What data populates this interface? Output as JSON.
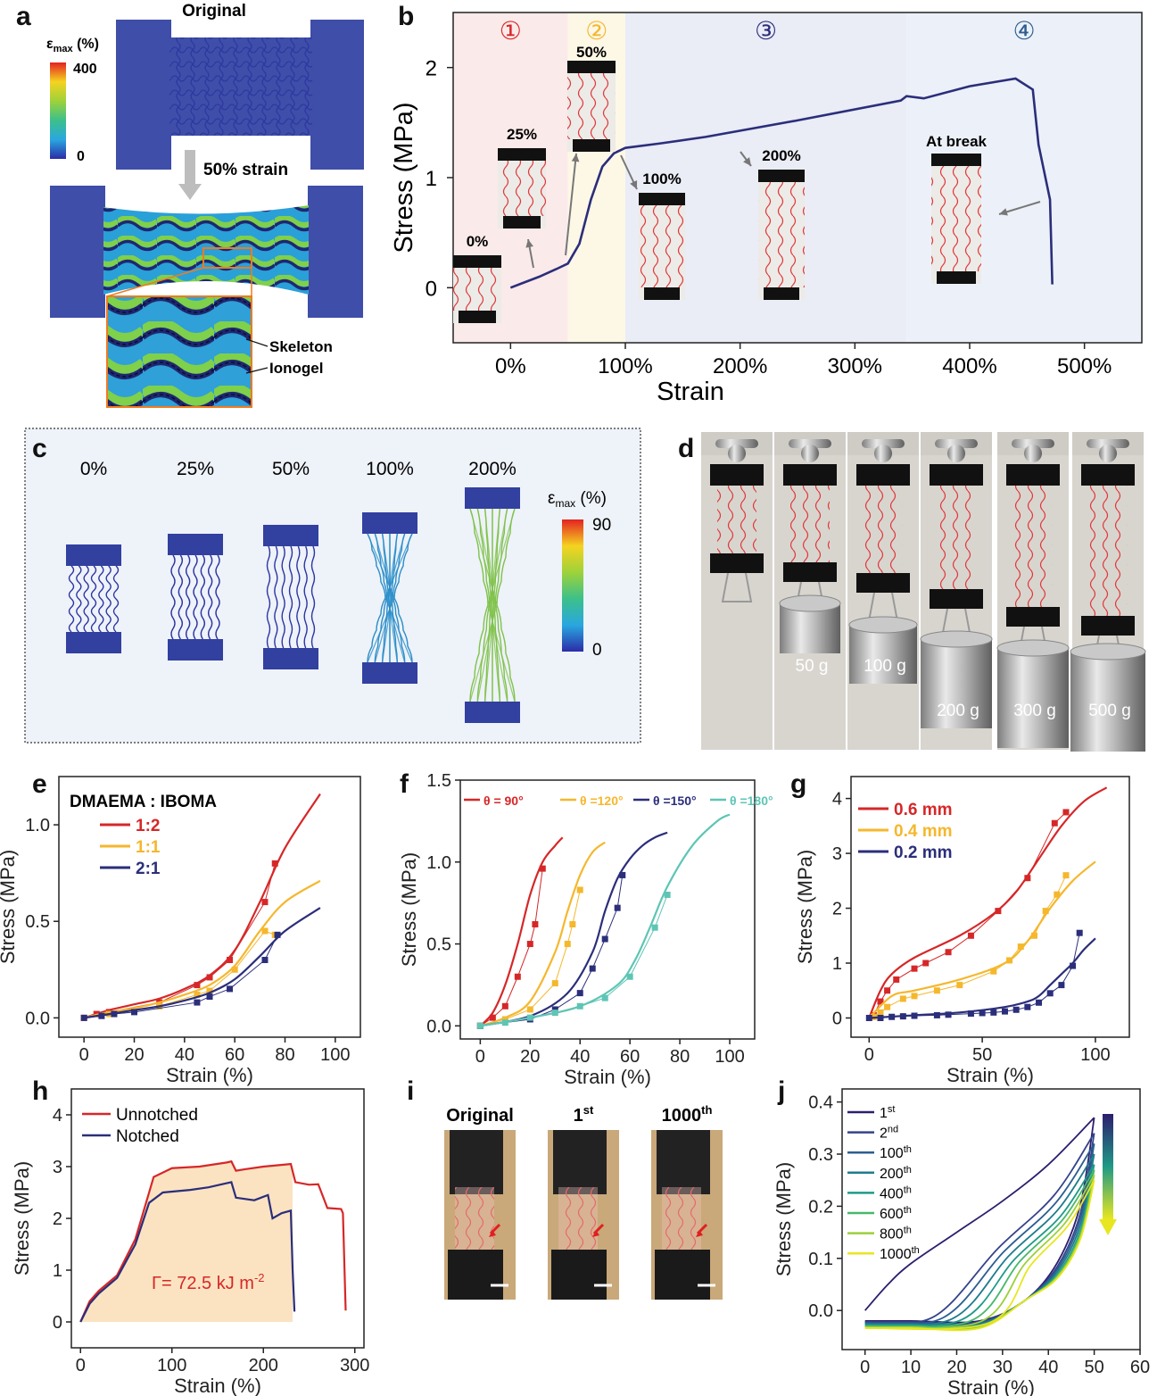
{
  "colors": {
    "red": "#d62728",
    "yellow": "#f5b72c",
    "navy": "#2b2e7a",
    "teal": "#5ec5b5",
    "fem_blue": "#3f4ea8",
    "photo_bg": "#d9d6d0"
  },
  "panels": {
    "a": {
      "label": "a",
      "title": "Original",
      "strain_text": "50% strain",
      "scale_label": "ε",
      "scale_sub": "max",
      "scale_unit": " (%)",
      "scale_max": "400",
      "scale_min": "0",
      "skeleton": "Skeleton",
      "ionogel": "Ionogel"
    },
    "b": {
      "label": "b"
    },
    "c": {
      "label": "c",
      "steps": [
        "0%",
        "25%",
        "50%",
        "100%",
        "200%"
      ],
      "scale_label": "ε",
      "scale_sub": "max",
      "scale_unit": " (%)",
      "scale_max": "90",
      "scale_min": "0"
    },
    "d": {
      "label": "d",
      "weights": [
        "50 g",
        "100 g",
        "200 g",
        "300 g",
        "500 g"
      ]
    },
    "e": {
      "label": "e"
    },
    "f": {
      "label": "f"
    },
    "g": {
      "label": "g"
    },
    "h": {
      "label": "h"
    },
    "i": {
      "label": "i",
      "photos": [
        "Original",
        "1",
        "1000"
      ],
      "photo_sup": [
        "",
        "st",
        "th"
      ]
    },
    "j": {
      "label": "j"
    }
  },
  "chart_data": [
    {
      "id": "b",
      "type": "line",
      "xlabel": "Strain",
      "ylabel": "Stress (MPa)",
      "xlim": [
        -50,
        550
      ],
      "ylim": [
        -0.5,
        2.5
      ],
      "xticks": [
        "0%",
        "100%",
        "200%",
        "300%",
        "400%",
        "500%"
      ],
      "yticks": [
        "0",
        "1",
        "2"
      ],
      "regions": [
        {
          "label": "①",
          "from": -50,
          "to": 50,
          "color": "#fbeaea"
        },
        {
          "label": "②",
          "from": 50,
          "to": 100,
          "color": "#fdf7e6"
        },
        {
          "label": "③",
          "from": 100,
          "to": 345,
          "color": "#eaecf6"
        },
        {
          "label": "④",
          "from": 345,
          "to": 550,
          "color": "#ecf1f9"
        }
      ],
      "region_colors": [
        "#d62728",
        "#f5b72c",
        "#2b2e7a",
        "#2c5d8f"
      ],
      "insets": [
        "0%",
        "25%",
        "50%",
        "100%",
        "200%",
        "At break"
      ],
      "x": [
        0,
        10,
        25,
        40,
        50,
        60,
        70,
        80,
        90,
        100,
        130,
        170,
        250,
        340,
        345,
        360,
        400,
        440,
        455,
        460,
        470,
        472
      ],
      "y": [
        0,
        0.04,
        0.1,
        0.17,
        0.22,
        0.4,
        0.8,
        1.1,
        1.22,
        1.27,
        1.31,
        1.37,
        1.52,
        1.7,
        1.74,
        1.72,
        1.83,
        1.9,
        1.8,
        1.3,
        0.8,
        0.03
      ]
    },
    {
      "id": "e",
      "type": "line",
      "legend_title": "DMAEMA : IBOMA",
      "xlabel": "Strain (%)",
      "ylabel": "Stress (MPa)",
      "xlim": [
        -10,
        110
      ],
      "ylim": [
        -0.1,
        1.25
      ],
      "xticks": [
        "0",
        "20",
        "40",
        "60",
        "80",
        "100"
      ],
      "yticks": [
        "0.0",
        "0.5",
        "1.0"
      ],
      "series": [
        {
          "name": "1:2",
          "color": "#d62728",
          "x": [
            0,
            10,
            20,
            30,
            40,
            50,
            60,
            70,
            80,
            94
          ],
          "y": [
            0,
            0.04,
            0.07,
            0.1,
            0.15,
            0.22,
            0.35,
            0.6,
            0.88,
            1.16
          ],
          "points_x": [
            0,
            5,
            10,
            30,
            45,
            50,
            58,
            72,
            76
          ],
          "points_y": [
            0,
            0.02,
            0.03,
            0.08,
            0.17,
            0.21,
            0.3,
            0.6,
            0.8
          ]
        },
        {
          "name": "1:1",
          "color": "#f5b72c",
          "x": [
            0,
            10,
            20,
            30,
            40,
            50,
            60,
            70,
            80,
            94
          ],
          "y": [
            0,
            0.03,
            0.05,
            0.08,
            0.12,
            0.17,
            0.27,
            0.45,
            0.6,
            0.71
          ],
          "points_x": [
            0,
            10,
            20,
            30,
            45,
            50,
            60,
            72,
            76
          ],
          "points_y": [
            0,
            0.02,
            0.04,
            0.06,
            0.12,
            0.14,
            0.25,
            0.45,
            0.43
          ]
        },
        {
          "name": "2:1",
          "color": "#2b2e7a",
          "x": [
            0,
            10,
            20,
            30,
            40,
            50,
            60,
            70,
            80,
            94
          ],
          "y": [
            0,
            0.02,
            0.04,
            0.06,
            0.09,
            0.13,
            0.2,
            0.32,
            0.45,
            0.57
          ],
          "points_x": [
            0,
            7,
            12,
            20,
            45,
            50,
            58,
            72,
            77
          ],
          "points_y": [
            0,
            0.01,
            0.02,
            0.03,
            0.08,
            0.11,
            0.15,
            0.3,
            0.43
          ]
        }
      ]
    },
    {
      "id": "f",
      "type": "line",
      "xlabel": "Strain (%)",
      "ylabel": "Stress (MPa)",
      "xlim": [
        -8,
        110
      ],
      "ylim": [
        -0.08,
        1.5
      ],
      "xticks": [
        "0",
        "20",
        "40",
        "60",
        "80",
        "100"
      ],
      "yticks": [
        "0.0",
        "0.5",
        "1.0",
        "1.5"
      ],
      "series": [
        {
          "name": "θ = 90°",
          "color": "#d62728",
          "x": [
            0,
            5,
            10,
            15,
            20,
            25,
            30,
            33
          ],
          "y": [
            0,
            0.08,
            0.25,
            0.5,
            0.8,
            1.0,
            1.1,
            1.15
          ],
          "points_x": [
            0,
            5,
            10,
            15,
            20,
            22,
            25
          ],
          "points_y": [
            0,
            0.05,
            0.12,
            0.3,
            0.5,
            0.62,
            0.96
          ]
        },
        {
          "name": "θ =120°",
          "color": "#f5b72c",
          "x": [
            0,
            10,
            20,
            30,
            35,
            40,
            45,
            50
          ],
          "y": [
            0,
            0.05,
            0.15,
            0.45,
            0.7,
            0.92,
            1.06,
            1.12
          ],
          "points_x": [
            0,
            10,
            20,
            30,
            35,
            37,
            40
          ],
          "points_y": [
            0,
            0.04,
            0.1,
            0.26,
            0.5,
            0.62,
            0.83
          ]
        },
        {
          "name": "θ =150°",
          "color": "#2b2e7a",
          "x": [
            0,
            20,
            35,
            45,
            50,
            55,
            60,
            65,
            70,
            75
          ],
          "y": [
            0,
            0.06,
            0.2,
            0.45,
            0.7,
            0.9,
            1.02,
            1.1,
            1.15,
            1.18
          ],
          "points_x": [
            0,
            20,
            30,
            40,
            45,
            50,
            55,
            57
          ],
          "points_y": [
            0,
            0.04,
            0.1,
            0.2,
            0.35,
            0.53,
            0.72,
            0.92
          ]
        },
        {
          "name": "θ =180°",
          "color": "#5ec5b5",
          "x": [
            0,
            20,
            40,
            55,
            62,
            68,
            75,
            85,
            95,
            100
          ],
          "y": [
            0,
            0.05,
            0.12,
            0.25,
            0.4,
            0.6,
            0.85,
            1.1,
            1.25,
            1.29
          ],
          "points_x": [
            0,
            10,
            20,
            30,
            40,
            50,
            60,
            70,
            75
          ],
          "points_y": [
            0,
            0.02,
            0.05,
            0.08,
            0.12,
            0.17,
            0.3,
            0.6,
            0.8
          ]
        }
      ]
    },
    {
      "id": "g",
      "type": "line",
      "xlabel": "Strain (%)",
      "ylabel": "Stress (MPa)",
      "xlim": [
        -8,
        115
      ],
      "ylim": [
        -0.35,
        4.4
      ],
      "xticks": [
        "0",
        "50",
        "100"
      ],
      "yticks": [
        "0",
        "1",
        "2",
        "3",
        "4"
      ],
      "series": [
        {
          "name": "0.6 mm",
          "color": "#d62728",
          "x": [
            0,
            5,
            10,
            20,
            40,
            55,
            65,
            75,
            85,
            95,
            105
          ],
          "y": [
            0,
            0.5,
            0.8,
            1.1,
            1.5,
            1.9,
            2.3,
            2.9,
            3.5,
            3.95,
            4.2
          ],
          "points_x": [
            2,
            5,
            8,
            12,
            20,
            25,
            35,
            45,
            57,
            70,
            82,
            87
          ],
          "points_y": [
            0.05,
            0.3,
            0.5,
            0.7,
            0.9,
            1.0,
            1.2,
            1.5,
            1.95,
            2.55,
            3.55,
            3.75
          ]
        },
        {
          "name": "0.4 mm",
          "color": "#f5b72c",
          "x": [
            0,
            10,
            20,
            40,
            60,
            70,
            80,
            90,
            100
          ],
          "y": [
            0,
            0.4,
            0.5,
            0.7,
            1.0,
            1.4,
            2.0,
            2.5,
            2.85
          ],
          "points_x": [
            2,
            5,
            8,
            15,
            20,
            30,
            40,
            55,
            62,
            67,
            73,
            78,
            83,
            87
          ],
          "points_y": [
            0.02,
            0.1,
            0.2,
            0.35,
            0.4,
            0.5,
            0.6,
            0.85,
            1.05,
            1.3,
            1.5,
            1.95,
            2.25,
            2.6
          ]
        },
        {
          "name": "0.2 mm",
          "color": "#2b2e7a",
          "x": [
            0,
            20,
            40,
            60,
            70,
            75,
            80,
            85,
            90,
            95,
            100
          ],
          "y": [
            0,
            0.05,
            0.1,
            0.2,
            0.3,
            0.4,
            0.6,
            0.8,
            1.0,
            1.25,
            1.45
          ],
          "points_x": [
            0,
            5,
            10,
            15,
            20,
            30,
            35,
            45,
            50,
            55,
            60,
            65,
            70,
            75,
            80,
            85,
            90,
            93
          ],
          "points_y": [
            0,
            0,
            0.02,
            0.03,
            0.04,
            0.05,
            0.06,
            0.08,
            0.09,
            0.1,
            0.12,
            0.15,
            0.2,
            0.28,
            0.45,
            0.6,
            0.95,
            1.55
          ]
        }
      ]
    },
    {
      "id": "h",
      "type": "line",
      "xlabel": "Strain (%)",
      "ylabel": "Stress (MPa)",
      "xlim": [
        -10,
        310
      ],
      "ylim": [
        -0.5,
        4.5
      ],
      "xticks": [
        "0",
        "100",
        "200",
        "300"
      ],
      "yticks": [
        "0",
        "1",
        "2",
        "3",
        "4"
      ],
      "annotation": "Γ= 72.5 kJ m",
      "annotation_sup": "-2",
      "series": [
        {
          "name": "Unnotched",
          "color": "#d62728",
          "x": [
            0,
            10,
            20,
            40,
            60,
            80,
            100,
            130,
            160,
            165,
            170,
            180,
            200,
            230,
            235,
            250,
            260,
            270,
            285,
            287,
            290
          ],
          "y": [
            0,
            0.4,
            0.6,
            0.9,
            1.6,
            2.8,
            2.97,
            3.0,
            3.08,
            3.1,
            2.92,
            2.95,
            3.0,
            3.05,
            2.7,
            2.65,
            2.66,
            2.2,
            2.18,
            2.1,
            0.22
          ]
        },
        {
          "name": "Notched",
          "color": "#2b2e7a",
          "x": [
            0,
            10,
            20,
            40,
            60,
            75,
            90,
            120,
            140,
            165,
            170,
            190,
            205,
            210,
            220,
            230,
            232,
            234
          ],
          "y": [
            0,
            0.35,
            0.55,
            0.85,
            1.5,
            2.3,
            2.5,
            2.55,
            2.6,
            2.7,
            2.4,
            2.35,
            2.45,
            2.0,
            2.1,
            2.15,
            1.0,
            0.2
          ]
        }
      ]
    },
    {
      "id": "j",
      "type": "line",
      "xlabel": "Strain (%)",
      "ylabel": "Stress (MPa)",
      "xlim": [
        -5,
        60
      ],
      "ylim": [
        -0.075,
        0.425
      ],
      "xticks": [
        "0",
        "10",
        "20",
        "30",
        "40",
        "50",
        "60"
      ],
      "yticks": [
        "0.0",
        "0.1",
        "0.2",
        "0.3",
        "0.4"
      ],
      "series": [
        {
          "name": "1st",
          "color": "#2d1e6e",
          "peak": 0.37,
          "onset": 0
        },
        {
          "name": "2nd",
          "color": "#34438a",
          "peak": 0.34,
          "onset": 15
        },
        {
          "name": "100th",
          "color": "#2b5e91",
          "peak": 0.32,
          "onset": 17
        },
        {
          "name": "200th",
          "color": "#1f7c8c",
          "peak": 0.3,
          "onset": 19
        },
        {
          "name": "400th",
          "color": "#1f9a86",
          "peak": 0.28,
          "onset": 21
        },
        {
          "name": "600th",
          "color": "#46b86b",
          "peak": 0.27,
          "onset": 23
        },
        {
          "name": "800th",
          "color": "#9ccf3a",
          "peak": 0.26,
          "onset": 25
        },
        {
          "name": "1000th",
          "color": "#e8e620",
          "peak": 0.25,
          "onset": 27
        }
      ]
    }
  ]
}
